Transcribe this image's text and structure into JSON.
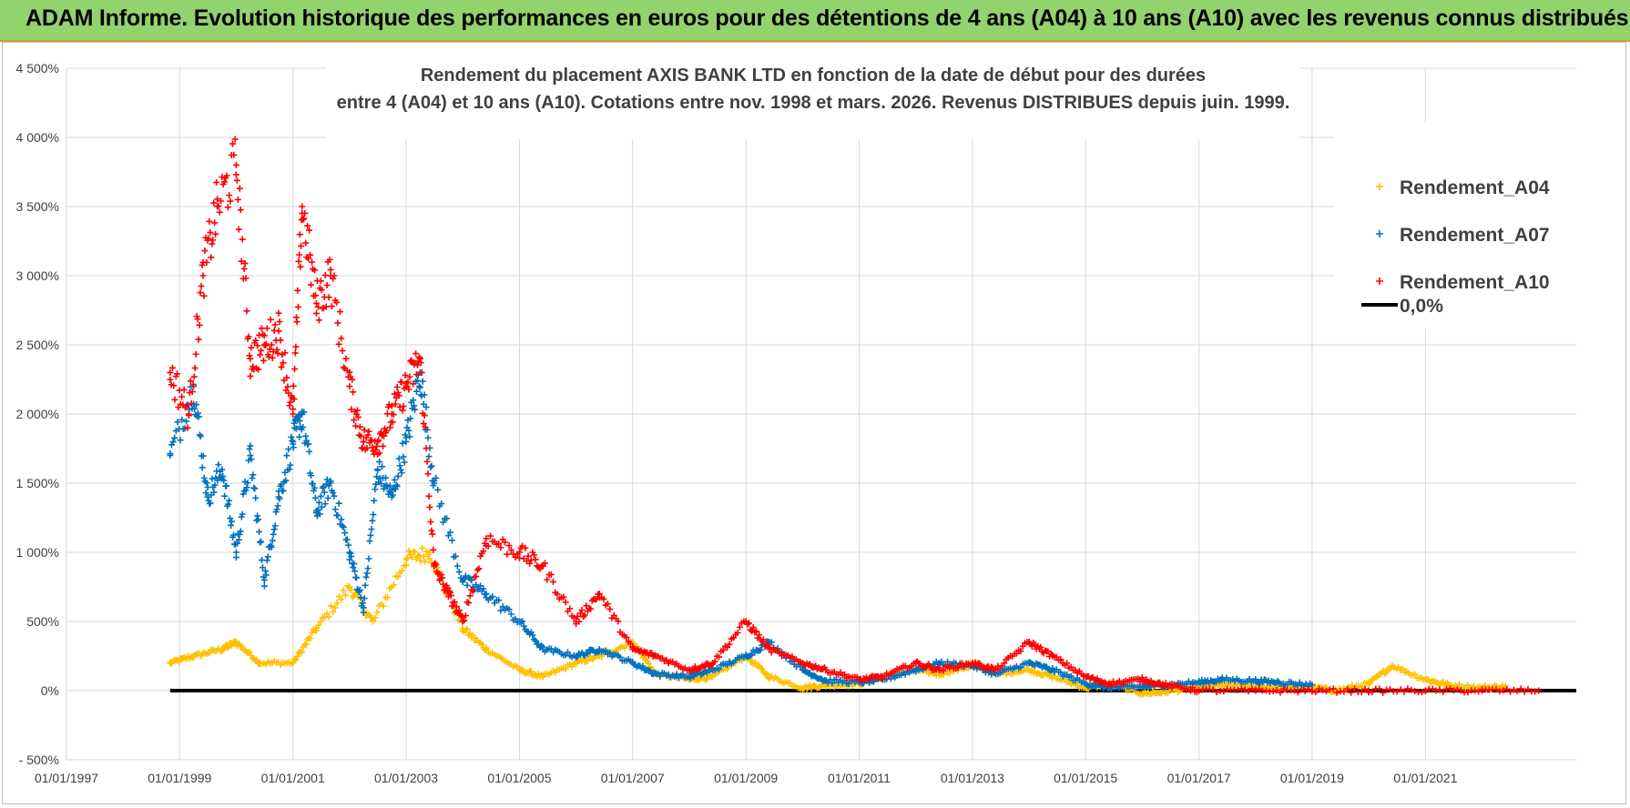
{
  "banner": {
    "text": "ADAM Informe. Evolution historique des performances en euros pour des détentions de 4 ans (A04) à 10 ans (A10) avec les revenus connus distribués"
  },
  "chart_data": {
    "type": "scatter",
    "title_lines": [
      "Rendement du placement AXIS BANK LTD en fonction de la date de début pour des durées",
      "entre 4 (A04) et 10 ans (A10). Cotations entre nov. 1998 et mars. 2026. Revenus DISTRIBUES depuis juin. 1999."
    ],
    "x_tick_labels": [
      "01/01/1997",
      "01/01/1999",
      "01/01/2001",
      "01/01/2003",
      "01/01/2005",
      "01/01/2007",
      "01/01/2009",
      "01/01/2011",
      "01/01/2013",
      "01/01/2015",
      "01/01/2017",
      "01/01/2019",
      "01/01/2021"
    ],
    "x_range": [
      "1997-01-01",
      "2023-09-01"
    ],
    "y_tick_labels": [
      "4 500%",
      "4 000%",
      "3 500%",
      "3 000%",
      "2 500%",
      "2 000%",
      "1 500%",
      "1 000%",
      "500%",
      "0%",
      "- 500%"
    ],
    "y_ticks": [
      4500,
      4000,
      3500,
      3000,
      2500,
      2000,
      1500,
      1000,
      500,
      0,
      -500
    ],
    "ylim": [
      -500,
      4500
    ],
    "ylabel_unit": "%",
    "grid": true,
    "legend_position": "top-right",
    "baseline": {
      "name": "0,0%",
      "value": 0,
      "color": "#000000",
      "x_from": "1998-11-01",
      "x_to": "2023-09-01"
    },
    "series": [
      {
        "name": "Rendement_A04",
        "color": "#ffc000",
        "marker": "plus",
        "x": [
          "1998-11-01",
          "1999-04-01",
          "1999-10-01",
          "2000-01-01",
          "2000-06-01",
          "2001-01-01",
          "2001-06-01",
          "2002-01-01",
          "2002-06-01",
          "2003-01-01",
          "2003-06-01",
          "2004-01-01",
          "2004-06-01",
          "2005-01-01",
          "2005-06-01",
          "2006-01-01",
          "2006-06-01",
          "2007-01-01",
          "2007-06-01",
          "2008-01-01",
          "2008-06-01",
          "2009-01-01",
          "2009-06-01",
          "2010-01-01",
          "2010-06-01",
          "2011-01-01",
          "2011-06-01",
          "2012-01-01",
          "2012-06-01",
          "2013-01-01",
          "2013-06-01",
          "2014-01-01",
          "2014-06-01",
          "2015-01-01",
          "2015-06-01",
          "2016-01-01",
          "2016-06-01",
          "2017-01-01",
          "2017-06-01",
          "2018-01-01",
          "2018-06-01",
          "2019-01-01",
          "2019-06-01",
          "2020-01-01",
          "2020-06-01",
          "2021-01-01",
          "2021-06-01",
          "2022-01-01",
          "2022-06-01"
        ],
        "values": [
          200,
          250,
          300,
          350,
          200,
          200,
          450,
          750,
          500,
          950,
          1000,
          450,
          300,
          150,
          100,
          200,
          250,
          350,
          120,
          80,
          100,
          250,
          100,
          20,
          40,
          50,
          100,
          150,
          120,
          180,
          120,
          150,
          100,
          20,
          50,
          -20,
          -10,
          30,
          40,
          30,
          20,
          20,
          0,
          50,
          180,
          80,
          40,
          20,
          30
        ]
      },
      {
        "name": "Rendement_A07",
        "color": "#0070c0",
        "marker": "plus",
        "x": [
          "1998-11-01",
          "1999-04-01",
          "1999-07-01",
          "1999-10-01",
          "2000-01-01",
          "2000-04-01",
          "2000-07-01",
          "2000-10-01",
          "2001-01-01",
          "2001-03-01",
          "2001-06-01",
          "2001-09-01",
          "2002-01-01",
          "2002-04-01",
          "2002-07-01",
          "2002-10-01",
          "2003-01-01",
          "2003-04-01",
          "2003-07-01",
          "2004-01-01",
          "2004-06-01",
          "2005-01-01",
          "2005-06-01",
          "2006-01-01",
          "2006-06-01",
          "2007-01-01",
          "2007-06-01",
          "2008-01-01",
          "2008-06-01",
          "2009-01-01",
          "2009-06-01",
          "2010-01-01",
          "2010-06-01",
          "2011-01-01",
          "2011-06-01",
          "2012-01-01",
          "2012-06-01",
          "2013-01-01",
          "2013-06-01",
          "2014-01-01",
          "2014-06-01",
          "2015-01-01",
          "2015-06-01",
          "2016-01-01",
          "2016-06-01",
          "2017-01-01",
          "2017-06-01",
          "2018-01-01",
          "2018-06-01",
          "2019-01-01"
        ],
        "values": [
          1700,
          2200,
          1400,
          1600,
          1000,
          1700,
          800,
          1400,
          1800,
          2000,
          1300,
          1500,
          1000,
          600,
          1600,
          1400,
          1800,
          2300,
          1500,
          800,
          700,
          500,
          300,
          250,
          300,
          200,
          120,
          100,
          150,
          250,
          350,
          150,
          70,
          60,
          80,
          150,
          200,
          180,
          120,
          200,
          150,
          50,
          20,
          30,
          40,
          60,
          80,
          70,
          60,
          40
        ]
      },
      {
        "name": "Rendement_A10",
        "color": "#ff0000",
        "marker": "plus",
        "x": [
          "1998-11-01",
          "1999-03-01",
          "1999-06-01",
          "1999-09-01",
          "2000-01-01",
          "2000-04-01",
          "2000-07-01",
          "2000-10-01",
          "2001-01-01",
          "2001-03-01",
          "2001-06-01",
          "2001-09-01",
          "2002-01-01",
          "2002-04-01",
          "2002-07-01",
          "2002-10-01",
          "2003-01-01",
          "2003-04-01",
          "2003-07-01",
          "2003-10-01",
          "2004-01-01",
          "2004-06-01",
          "2005-01-01",
          "2005-06-01",
          "2006-01-01",
          "2006-06-01",
          "2007-01-01",
          "2007-06-01",
          "2008-01-01",
          "2008-06-01",
          "2009-01-01",
          "2009-06-01",
          "2010-01-01",
          "2010-06-01",
          "2011-01-01",
          "2011-06-01",
          "2012-01-01",
          "2012-06-01",
          "2013-01-01",
          "2013-06-01",
          "2014-01-01",
          "2014-06-01",
          "2015-01-01",
          "2015-06-01",
          "2016-01-01",
          "2016-06-01",
          "2017-01-01",
          "2018-01-01",
          "2019-01-01",
          "2020-01-01",
          "2021-01-01",
          "2022-01-01",
          "2023-01-01"
        ],
        "values": [
          2300,
          2000,
          3000,
          3500,
          3800,
          2400,
          2500,
          2600,
          2000,
          3500,
          2800,
          3000,
          2200,
          1800,
          1800,
          2000,
          2200,
          2400,
          900,
          700,
          500,
          1100,
          1000,
          900,
          500,
          700,
          300,
          250,
          150,
          200,
          500,
          300,
          200,
          150,
          80,
          100,
          200,
          150,
          200,
          150,
          350,
          250,
          100,
          50,
          80,
          40,
          0,
          0,
          0,
          0,
          0,
          0,
          0
        ]
      }
    ]
  }
}
